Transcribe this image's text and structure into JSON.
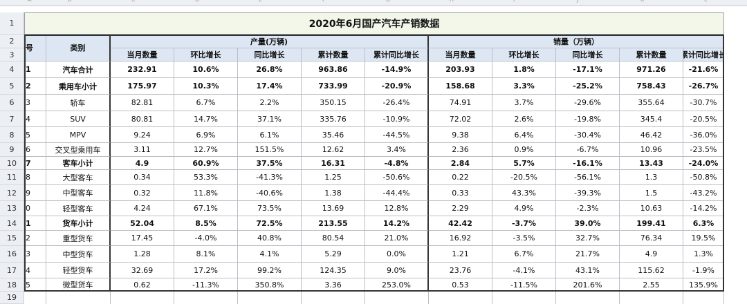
{
  "title": "2020年6月国产汽车产销数据",
  "col_letters": [
    "A",
    "B",
    "C",
    "D",
    "E",
    "F",
    "G",
    "H",
    "I",
    "J",
    "K",
    "L"
  ],
  "header": {
    "seq": "号",
    "category": "类别",
    "production_group": "产量(万辆)",
    "sales_group": "销量（万辆）",
    "sub": [
      "当月数量",
      "环比增长",
      "同比增长",
      "累计数量",
      "累计同比增长"
    ]
  },
  "row_numbers": [
    "1",
    "2",
    "3",
    "4",
    "5",
    "6",
    "7",
    "8",
    "9",
    "10",
    "11",
    "12",
    "13",
    "14",
    "15",
    "16",
    "17",
    "18",
    "19"
  ],
  "rows": [
    {
      "seq": "1",
      "name": "汽车合计",
      "bold": true,
      "p": [
        "232.91",
        "10.6%",
        "26.8%",
        "963.86",
        "-14.9%"
      ],
      "s": [
        "203.93",
        "1.8%",
        "-17.1%",
        "971.26",
        "-21.6%"
      ]
    },
    {
      "seq": "2",
      "name": "乘用车小计",
      "bold": true,
      "p": [
        "175.97",
        "10.3%",
        "17.4%",
        "733.99",
        "-20.9%"
      ],
      "s": [
        "158.68",
        "3.3%",
        "-25.2%",
        "758.43",
        "-26.7%"
      ]
    },
    {
      "seq": "3",
      "name": "轿车",
      "bold": false,
      "p": [
        "82.81",
        "6.7%",
        "2.2%",
        "350.15",
        "-26.4%"
      ],
      "s": [
        "74.91",
        "3.7%",
        "-29.6%",
        "355.64",
        "-30.7%"
      ]
    },
    {
      "seq": "4",
      "name": "SUV",
      "bold": false,
      "p": [
        "80.81",
        "14.7%",
        "37.1%",
        "335.76",
        "-10.9%"
      ],
      "s": [
        "72.02",
        "2.6%",
        "-19.8%",
        "345.4",
        "-20.5%"
      ]
    },
    {
      "seq": "5",
      "name": "MPV",
      "bold": false,
      "p": [
        "9.24",
        "6.9%",
        "6.1%",
        "35.46",
        "-44.5%"
      ],
      "s": [
        "9.38",
        "6.4%",
        "-30.4%",
        "46.42",
        "-36.0%"
      ]
    },
    {
      "seq": "6",
      "name": "交叉型乘用车",
      "bold": false,
      "p": [
        "3.11",
        "12.7%",
        "151.5%",
        "12.62",
        "3.4%"
      ],
      "s": [
        "2.36",
        "0.9%",
        "-6.7%",
        "10.96",
        "-23.5%"
      ]
    },
    {
      "seq": "7",
      "name": "客车小计",
      "bold": true,
      "p": [
        "4.9",
        "60.9%",
        "37.5%",
        "16.31",
        "-4.8%"
      ],
      "s": [
        "2.84",
        "5.7%",
        "-16.1%",
        "13.43",
        "-24.0%"
      ]
    },
    {
      "seq": "8",
      "name": "大型客车",
      "bold": false,
      "p": [
        "0.34",
        "53.3%",
        "-41.3%",
        "1.25",
        "-50.6%"
      ],
      "s": [
        "0.22",
        "-20.5%",
        "-56.1%",
        "1.3",
        "-50.8%"
      ]
    },
    {
      "seq": "9",
      "name": "中型客车",
      "bold": false,
      "p": [
        "0.32",
        "11.8%",
        "-40.6%",
        "1.38",
        "-44.4%"
      ],
      "s": [
        "0.33",
        "43.3%",
        "-39.3%",
        "1.5",
        "-43.2%"
      ]
    },
    {
      "seq": "0",
      "name": "轻型客车",
      "bold": false,
      "p": [
        "4.24",
        "67.1%",
        "73.5%",
        "13.69",
        "12.8%"
      ],
      "s": [
        "2.29",
        "4.9%",
        "-2.3%",
        "10.63",
        "-14.2%"
      ]
    },
    {
      "seq": "1",
      "name": "货车小计",
      "bold": true,
      "p": [
        "52.04",
        "8.5%",
        "72.5%",
        "213.55",
        "14.2%"
      ],
      "s": [
        "42.42",
        "-3.7%",
        "39.0%",
        "199.41",
        "6.3%"
      ]
    },
    {
      "seq": "2",
      "name": "重型货车",
      "bold": false,
      "p": [
        "17.45",
        "-4.0%",
        "40.8%",
        "80.54",
        "21.0%"
      ],
      "s": [
        "16.92",
        "-3.5%",
        "32.7%",
        "76.34",
        "19.5%"
      ]
    },
    {
      "seq": "3",
      "name": "中型货车",
      "bold": false,
      "p": [
        "1.28",
        "8.1%",
        "4.1%",
        "5.29",
        "0.0%"
      ],
      "s": [
        "1.21",
        "6.7%",
        "21.7%",
        "4.9",
        "1.3%"
      ]
    },
    {
      "seq": "4",
      "name": "轻型货车",
      "bold": false,
      "p": [
        "32.69",
        "17.2%",
        "99.2%",
        "124.35",
        "9.0%"
      ],
      "s": [
        "23.76",
        "-4.1%",
        "43.1%",
        "115.62",
        "-1.9%"
      ]
    },
    {
      "seq": "5",
      "name": "微型货车",
      "bold": false,
      "p": [
        "0.62",
        "-11.3%",
        "350.8%",
        "3.36",
        "253.0%"
      ],
      "s": [
        "0.53",
        "-11.5%",
        "201.6%",
        "2.55",
        "135.9%"
      ]
    }
  ]
}
